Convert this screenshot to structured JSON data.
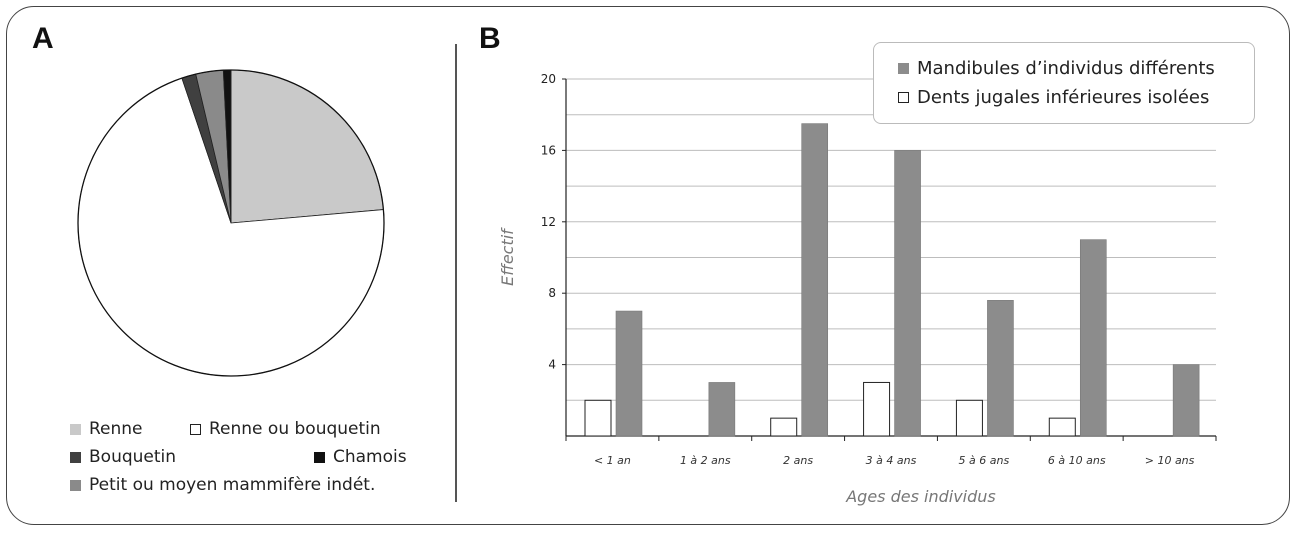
{
  "panels": {
    "a_label": "A",
    "b_label": "B"
  },
  "colors": {
    "renne": "#c9c9c9",
    "renne_ou_bouquetin": "#ffffff",
    "bouquetin": "#404040",
    "chamois": "#111111",
    "petit_moyen": "#8a8a8a",
    "bar_mandibules": "#8c8c8c",
    "bar_dents": "#ffffff",
    "grid": "#bdbdbd"
  },
  "pie_legend": {
    "renne": "Renne",
    "renne_ou_bouquetin": "Renne ou bouquetin",
    "bouquetin": "Bouquetin",
    "chamois": "Chamois",
    "petit_moyen": "Petit ou moyen mammifère indét."
  },
  "chart_data": [
    {
      "type": "pie",
      "slices": [
        {
          "label": "Renne",
          "value": 23.6,
          "color": "#c9c9c9"
        },
        {
          "label": "Renne ou bouquetin",
          "value": 71.2,
          "color": "#ffffff"
        },
        {
          "label": "Bouquetin",
          "value": 1.5,
          "color": "#404040"
        },
        {
          "label": "Petit ou moyen mammifère indét.",
          "value": 2.9,
          "color": "#8a8a8a"
        },
        {
          "label": "Chamois",
          "value": 0.8,
          "color": "#111111"
        }
      ],
      "start": "12 o'clock",
      "direction": "clockwise"
    },
    {
      "type": "bar",
      "categories": [
        "< 1 an",
        "1 à 2 ans",
        "2 ans",
        "3 à 4 ans",
        "5 à 6 ans",
        "6 à 10 ans",
        "> 10 ans"
      ],
      "series": [
        {
          "name": "Dents jugales inférieures isolées",
          "values": [
            2,
            0,
            1,
            3,
            2,
            1,
            0
          ],
          "color": "#ffffff"
        },
        {
          "name": "Mandibules d’individus différents",
          "values": [
            7,
            3,
            17.5,
            16,
            7.6,
            11,
            4
          ],
          "color": "#8c8c8c"
        }
      ],
      "xlabel": "Ages des individus",
      "ylabel": "Effectif",
      "ylim": [
        0,
        20
      ],
      "yticks": [
        4,
        8,
        12,
        16,
        20
      ],
      "grid": true,
      "legend_placement": "top-right",
      "legend_order": [
        "Mandibules d’individus différents",
        "Dents jugales inférieures isolées"
      ]
    }
  ]
}
